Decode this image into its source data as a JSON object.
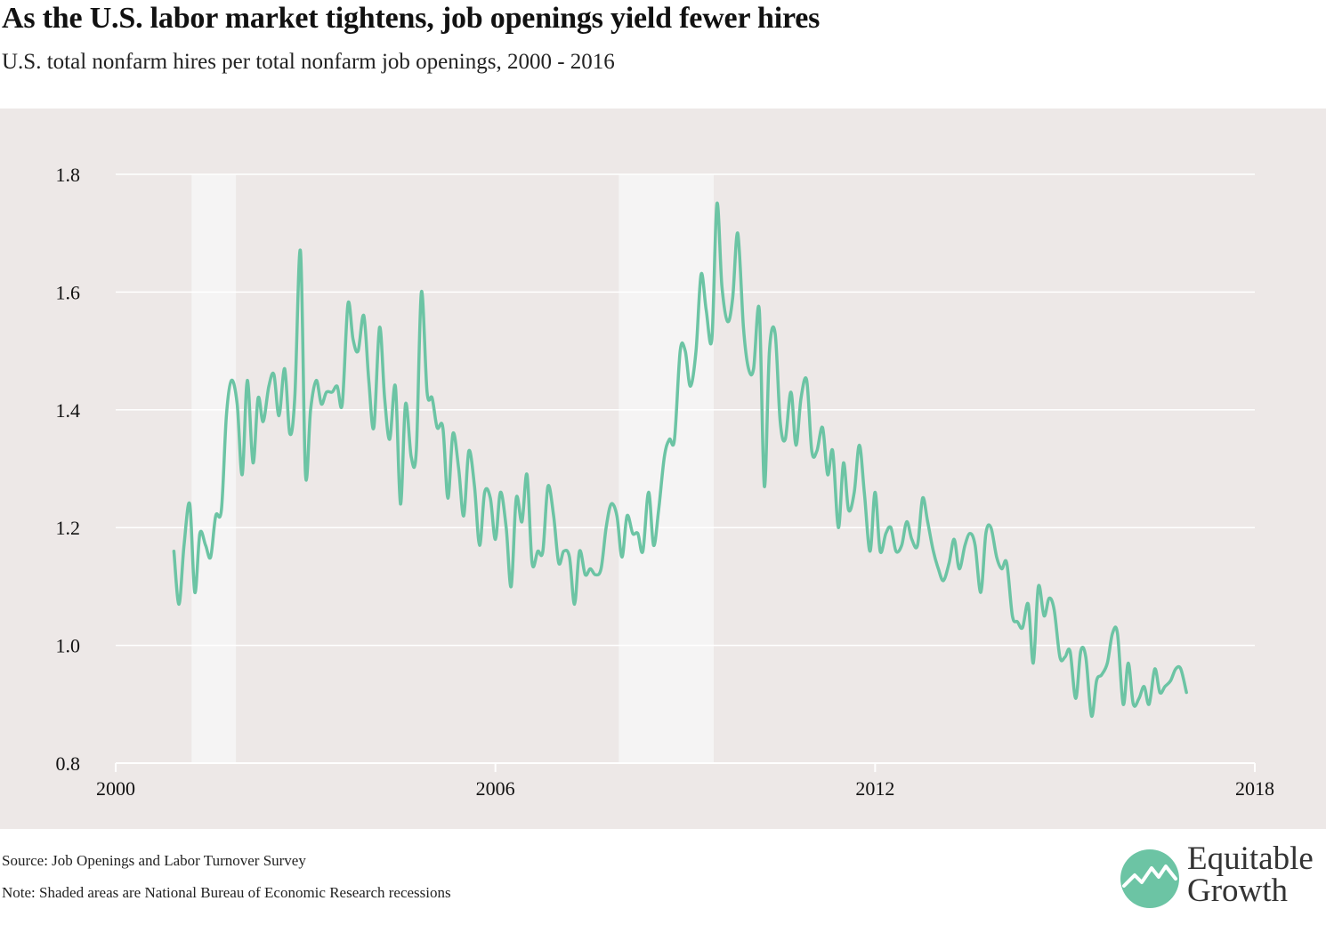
{
  "header": {
    "title": "As the U.S. labor market tightens, job openings yield fewer hires",
    "subtitle": "U.S. total nonfarm hires per total nonfarm job openings, 2000 - 2016"
  },
  "footer": {
    "source": "Source: Job Openings and Labor Turnover Survey",
    "note": "Note: Shaded areas are National Bureau of Economic Research recessions"
  },
  "logo": {
    "line1": "Equitable",
    "line2": "Growth",
    "icon": "equitable-growth-logo-icon",
    "color": "#6cc4a4"
  },
  "colors": {
    "line": "#6cc4a4",
    "panel": "#ede8e7",
    "recession": "#f5f4f4",
    "grid": "#ffffff"
  },
  "chart_data": {
    "type": "line",
    "title": "As the U.S. labor market tightens, job openings yield fewer hires",
    "subtitle": "U.S. total nonfarm hires per total nonfarm job openings, 2000 - 2016",
    "xlabel": "",
    "ylabel": "",
    "xlim": [
      2000,
      2018
    ],
    "ylim": [
      0.8,
      1.8
    ],
    "x_ticks": [
      2000,
      2006,
      2012,
      2018
    ],
    "x_tick_labels": [
      "2000",
      "2006",
      "2012",
      "2018"
    ],
    "y_ticks": [
      0.8,
      1.0,
      1.2,
      1.4,
      1.6,
      1.8
    ],
    "y_tick_labels": [
      "0.8",
      "1.0",
      "1.2",
      "1.4",
      "1.6",
      "1.8"
    ],
    "grid": "horizontal",
    "recessions": [
      {
        "start": 2001.2,
        "end": 2001.9
      },
      {
        "start": 2007.95,
        "end": 2009.45
      }
    ],
    "series": [
      {
        "values": [
          [
            2000.92,
            1.16
          ],
          [
            2001.0,
            1.07
          ],
          [
            2001.08,
            1.17
          ],
          [
            2001.17,
            1.24
          ],
          [
            2001.25,
            1.09
          ],
          [
            2001.33,
            1.19
          ],
          [
            2001.42,
            1.17
          ],
          [
            2001.5,
            1.15
          ],
          [
            2001.58,
            1.22
          ],
          [
            2001.67,
            1.23
          ],
          [
            2001.75,
            1.39
          ],
          [
            2001.83,
            1.45
          ],
          [
            2001.92,
            1.41
          ],
          [
            2002.0,
            1.29
          ],
          [
            2002.08,
            1.45
          ],
          [
            2002.17,
            1.31
          ],
          [
            2002.25,
            1.42
          ],
          [
            2002.33,
            1.38
          ],
          [
            2002.42,
            1.44
          ],
          [
            2002.5,
            1.46
          ],
          [
            2002.58,
            1.39
          ],
          [
            2002.67,
            1.47
          ],
          [
            2002.75,
            1.36
          ],
          [
            2002.83,
            1.42
          ],
          [
            2002.92,
            1.67
          ],
          [
            2003.0,
            1.29
          ],
          [
            2003.08,
            1.4
          ],
          [
            2003.17,
            1.45
          ],
          [
            2003.25,
            1.41
          ],
          [
            2003.33,
            1.43
          ],
          [
            2003.42,
            1.43
          ],
          [
            2003.5,
            1.44
          ],
          [
            2003.58,
            1.41
          ],
          [
            2003.67,
            1.58
          ],
          [
            2003.75,
            1.52
          ],
          [
            2003.83,
            1.5
          ],
          [
            2003.92,
            1.56
          ],
          [
            2004.0,
            1.45
          ],
          [
            2004.08,
            1.37
          ],
          [
            2004.17,
            1.54
          ],
          [
            2004.25,
            1.42
          ],
          [
            2004.33,
            1.35
          ],
          [
            2004.42,
            1.44
          ],
          [
            2004.5,
            1.24
          ],
          [
            2004.58,
            1.41
          ],
          [
            2004.67,
            1.32
          ],
          [
            2004.75,
            1.33
          ],
          [
            2004.83,
            1.6
          ],
          [
            2004.92,
            1.43
          ],
          [
            2005.0,
            1.42
          ],
          [
            2005.08,
            1.37
          ],
          [
            2005.17,
            1.37
          ],
          [
            2005.25,
            1.25
          ],
          [
            2005.33,
            1.36
          ],
          [
            2005.42,
            1.3
          ],
          [
            2005.5,
            1.22
          ],
          [
            2005.58,
            1.33
          ],
          [
            2005.67,
            1.27
          ],
          [
            2005.75,
            1.17
          ],
          [
            2005.83,
            1.26
          ],
          [
            2005.92,
            1.25
          ],
          [
            2006.0,
            1.18
          ],
          [
            2006.08,
            1.26
          ],
          [
            2006.17,
            1.2
          ],
          [
            2006.25,
            1.1
          ],
          [
            2006.33,
            1.25
          ],
          [
            2006.42,
            1.21
          ],
          [
            2006.5,
            1.29
          ],
          [
            2006.58,
            1.14
          ],
          [
            2006.67,
            1.16
          ],
          [
            2006.75,
            1.16
          ],
          [
            2006.83,
            1.27
          ],
          [
            2006.92,
            1.22
          ],
          [
            2007.0,
            1.14
          ],
          [
            2007.08,
            1.16
          ],
          [
            2007.17,
            1.15
          ],
          [
            2007.25,
            1.07
          ],
          [
            2007.33,
            1.16
          ],
          [
            2007.42,
            1.12
          ],
          [
            2007.5,
            1.13
          ],
          [
            2007.58,
            1.12
          ],
          [
            2007.67,
            1.13
          ],
          [
            2007.75,
            1.2
          ],
          [
            2007.83,
            1.24
          ],
          [
            2007.92,
            1.22
          ],
          [
            2008.0,
            1.15
          ],
          [
            2008.08,
            1.22
          ],
          [
            2008.17,
            1.19
          ],
          [
            2008.25,
            1.19
          ],
          [
            2008.33,
            1.16
          ],
          [
            2008.42,
            1.26
          ],
          [
            2008.5,
            1.17
          ],
          [
            2008.58,
            1.23
          ],
          [
            2008.67,
            1.32
          ],
          [
            2008.75,
            1.35
          ],
          [
            2008.83,
            1.35
          ],
          [
            2008.92,
            1.5
          ],
          [
            2009.0,
            1.5
          ],
          [
            2009.08,
            1.44
          ],
          [
            2009.17,
            1.5
          ],
          [
            2009.25,
            1.63
          ],
          [
            2009.33,
            1.57
          ],
          [
            2009.42,
            1.52
          ],
          [
            2009.5,
            1.75
          ],
          [
            2009.58,
            1.61
          ],
          [
            2009.67,
            1.55
          ],
          [
            2009.75,
            1.59
          ],
          [
            2009.83,
            1.7
          ],
          [
            2009.92,
            1.54
          ],
          [
            2010.0,
            1.47
          ],
          [
            2010.08,
            1.47
          ],
          [
            2010.17,
            1.57
          ],
          [
            2010.25,
            1.27
          ],
          [
            2010.33,
            1.5
          ],
          [
            2010.42,
            1.53
          ],
          [
            2010.5,
            1.38
          ],
          [
            2010.58,
            1.35
          ],
          [
            2010.67,
            1.43
          ],
          [
            2010.75,
            1.34
          ],
          [
            2010.83,
            1.42
          ],
          [
            2010.92,
            1.45
          ],
          [
            2011.0,
            1.33
          ],
          [
            2011.08,
            1.33
          ],
          [
            2011.17,
            1.37
          ],
          [
            2011.25,
            1.29
          ],
          [
            2011.33,
            1.33
          ],
          [
            2011.42,
            1.2
          ],
          [
            2011.5,
            1.31
          ],
          [
            2011.58,
            1.23
          ],
          [
            2011.67,
            1.26
          ],
          [
            2011.75,
            1.34
          ],
          [
            2011.83,
            1.26
          ],
          [
            2011.92,
            1.16
          ],
          [
            2012.0,
            1.26
          ],
          [
            2012.08,
            1.16
          ],
          [
            2012.17,
            1.19
          ],
          [
            2012.25,
            1.2
          ],
          [
            2012.33,
            1.16
          ],
          [
            2012.42,
            1.17
          ],
          [
            2012.5,
            1.21
          ],
          [
            2012.58,
            1.18
          ],
          [
            2012.67,
            1.17
          ],
          [
            2012.75,
            1.25
          ],
          [
            2012.83,
            1.21
          ],
          [
            2012.92,
            1.16
          ],
          [
            2013.0,
            1.13
          ],
          [
            2013.08,
            1.11
          ],
          [
            2013.17,
            1.14
          ],
          [
            2013.25,
            1.18
          ],
          [
            2013.33,
            1.13
          ],
          [
            2013.42,
            1.17
          ],
          [
            2013.5,
            1.19
          ],
          [
            2013.58,
            1.17
          ],
          [
            2013.67,
            1.09
          ],
          [
            2013.75,
            1.19
          ],
          [
            2013.83,
            1.2
          ],
          [
            2013.92,
            1.15
          ],
          [
            2014.0,
            1.13
          ],
          [
            2014.08,
            1.14
          ],
          [
            2014.17,
            1.05
          ],
          [
            2014.25,
            1.04
          ],
          [
            2014.33,
            1.03
          ],
          [
            2014.42,
            1.07
          ],
          [
            2014.5,
            0.97
          ],
          [
            2014.58,
            1.1
          ],
          [
            2014.67,
            1.05
          ],
          [
            2014.75,
            1.08
          ],
          [
            2014.83,
            1.06
          ],
          [
            2014.92,
            0.98
          ],
          [
            2015.0,
            0.98
          ],
          [
            2015.08,
            0.99
          ],
          [
            2015.17,
            0.91
          ],
          [
            2015.25,
            0.99
          ],
          [
            2015.33,
            0.98
          ],
          [
            2015.42,
            0.88
          ],
          [
            2015.5,
            0.94
          ],
          [
            2015.58,
            0.95
          ],
          [
            2015.67,
            0.97
          ],
          [
            2015.75,
            1.02
          ],
          [
            2015.83,
            1.02
          ],
          [
            2015.92,
            0.9
          ],
          [
            2016.0,
            0.97
          ],
          [
            2016.08,
            0.9
          ],
          [
            2016.17,
            0.91
          ],
          [
            2016.25,
            0.93
          ],
          [
            2016.33,
            0.9
          ],
          [
            2016.42,
            0.96
          ],
          [
            2016.5,
            0.92
          ],
          [
            2016.58,
            0.93
          ],
          [
            2016.67,
            0.94
          ],
          [
            2016.75,
            0.96
          ],
          [
            2016.83,
            0.96
          ],
          [
            2016.92,
            0.92
          ]
        ]
      }
    ]
  }
}
